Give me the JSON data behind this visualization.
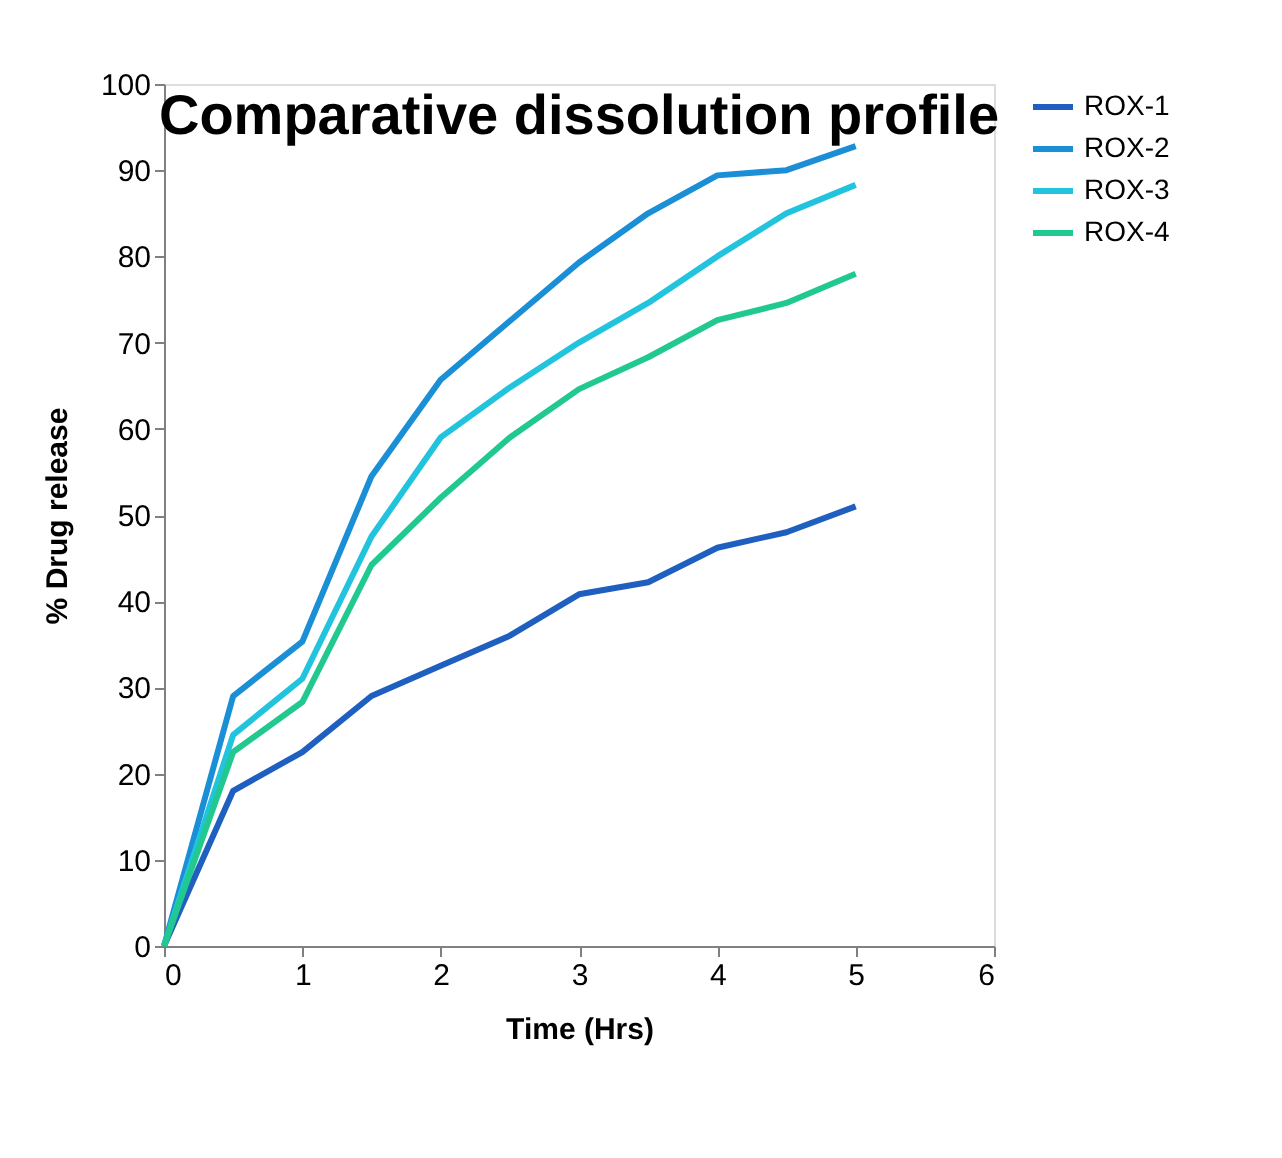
{
  "chart_data": {
    "type": "line",
    "title": "Comparative dissolution profile",
    "xlabel": "Time (Hrs)",
    "ylabel": "% Drug release",
    "x": [
      0,
      0.5,
      1,
      1.5,
      2,
      2.5,
      3,
      3.5,
      4,
      4.5,
      5
    ],
    "series": [
      {
        "name": "ROX-1",
        "color": "#1f5fbf",
        "values": [
          0,
          18,
          22.5,
          29,
          32.5,
          36,
          40.8,
          42.2,
          46.2,
          48,
          51
        ]
      },
      {
        "name": "ROX-2",
        "color": "#1a8fd6",
        "values": [
          0,
          29,
          35.3,
          54.5,
          65.7,
          72.5,
          79.3,
          85,
          89.4,
          90,
          92.8
        ]
      },
      {
        "name": "ROX-3",
        "color": "#22c4dd",
        "values": [
          0,
          24.5,
          31,
          47.5,
          59,
          64.8,
          70,
          74.6,
          80,
          85,
          88.3
        ]
      },
      {
        "name": "ROX-4",
        "color": "#22c98e",
        "values": [
          0,
          22.5,
          28.3,
          44.2,
          52,
          59,
          64.6,
          68.3,
          72.6,
          74.6,
          78
        ]
      }
    ],
    "xlim": [
      0,
      6
    ],
    "xticks": [
      0,
      1,
      2,
      3,
      4,
      5,
      6
    ],
    "ylim": [
      0,
      100
    ],
    "yticks": [
      0,
      10,
      20,
      30,
      40,
      50,
      60,
      70,
      80,
      90,
      100
    ],
    "grid": false,
    "legend": "right",
    "marker": "none",
    "line_style": "solid"
  }
}
